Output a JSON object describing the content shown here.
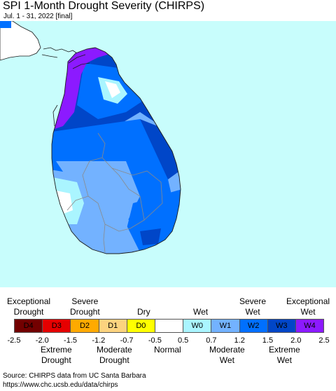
{
  "title": "SPI 1-Month Drought Severity (CHIRPS)",
  "subtitle": "Jul. 1 - 31, 2022 [final]",
  "colors": {
    "ocean": "#c8fdfc",
    "land_normal": "#ffffff",
    "coast_line": "#1a1a1a",
    "district_line": "#8a8a8a"
  },
  "legend": {
    "top_labels": [
      {
        "id": "exceptional-drought",
        "text": "Exceptional\nDrought"
      },
      {
        "id": "severe-drought",
        "text": "Severe\nDrought"
      },
      {
        "id": "dry",
        "text": "Dry"
      },
      {
        "id": "wet",
        "text": "Wet"
      },
      {
        "id": "severe-wet",
        "text": "Severe\nWet"
      },
      {
        "id": "exceptional-wet",
        "text": "Exceptional\nWet"
      }
    ],
    "classes": [
      {
        "code": "D4",
        "color": "#730000"
      },
      {
        "code": "D3",
        "color": "#e60000"
      },
      {
        "code": "D2",
        "color": "#ffaa00"
      },
      {
        "code": "D1",
        "color": "#fcd37f"
      },
      {
        "code": "D0",
        "color": "#ffff00"
      },
      {
        "code": "",
        "color": "#ffffff"
      },
      {
        "code": "W0",
        "color": "#aaf5ff"
      },
      {
        "code": "W1",
        "color": "#73b2ff"
      },
      {
        "code": "W2",
        "color": "#0070ff"
      },
      {
        "code": "W3",
        "color": "#0046c8"
      },
      {
        "code": "W4",
        "color": "#8c1aff"
      }
    ],
    "ticks": [
      "-2.5",
      "-2.0",
      "-1.5",
      "-1.2",
      "-0.7",
      "-0.5",
      "0.5",
      "0.7",
      "1.2",
      "1.5",
      "2.0",
      "2.5"
    ],
    "bottom_labels": [
      {
        "id": "extreme-drought",
        "text": "Extreme\nDrought"
      },
      {
        "id": "moderate-drought",
        "text": "Moderate\nDrought"
      },
      {
        "id": "normal",
        "text": "Normal"
      },
      {
        "id": "moderate-wet",
        "text": "Moderate\nWet"
      },
      {
        "id": "extreme-wet",
        "text": "Extreme\nWet"
      }
    ]
  },
  "source": {
    "line1": "Source: CHIRPS data from UC Santa Barbara",
    "line2": "https://www.chc.ucsb.edu/data/chirps"
  }
}
